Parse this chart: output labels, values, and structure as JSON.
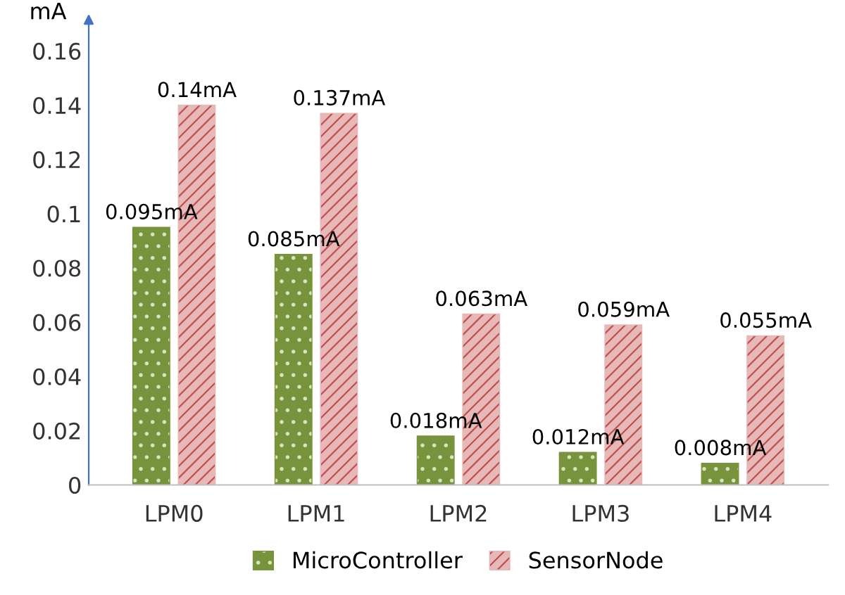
{
  "chart_data": {
    "type": "bar",
    "ylabel": "mA",
    "categories": [
      "LPM0",
      "LPM1",
      "LPM2",
      "LPM3",
      "LPM4"
    ],
    "series": [
      {
        "name": "MicroController",
        "color": "#77933c",
        "values": [
          0.095,
          0.085,
          0.018,
          0.012,
          0.008
        ],
        "value_labels": [
          "0.095mA",
          "0.085mA",
          "0.018mA",
          "0.012mA",
          "0.008mA"
        ]
      },
      {
        "name": "SensorNode",
        "color": "#e6b9b8",
        "values": [
          0.14,
          0.137,
          0.063,
          0.059,
          0.055
        ],
        "value_labels": [
          "0.14mA",
          "0.137mA",
          "0.063mA",
          "0.059mA",
          "0.055mA"
        ]
      }
    ],
    "ylim": [
      0,
      0.17
    ],
    "yticks": [
      0,
      0.02,
      0.04,
      0.06,
      0.08,
      0.1,
      0.12,
      0.14,
      0.16
    ],
    "grid": false,
    "legend": "bottom"
  }
}
